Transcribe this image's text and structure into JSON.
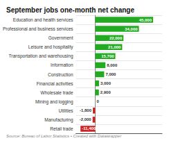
{
  "chart_data": {
    "type": "bar",
    "orientation": "horizontal",
    "title": "September jobs one-month net change",
    "annotations": [
      "Source: Bureau of Labor Statistics • Created with Datawrapper"
    ],
    "categories": [
      "Retail trade",
      "Manufacturing",
      "Utilities",
      "Mining and logging",
      "Wholesale trade",
      "Financial activities",
      "Construction",
      "Information",
      "Transportation and warehousing",
      "Leisure and hospitality",
      "Government",
      "Professional and business services",
      "Education and health services"
    ],
    "values": [
      -11400,
      -2000,
      -1800,
      0,
      2900,
      3000,
      7000,
      8000,
      15700,
      21000,
      22000,
      34000,
      45000
    ],
    "value_labels": [
      "-11,400",
      "-2,000",
      "-1,800",
      "0",
      "2,900",
      "3,000",
      "7,000",
      "8,000",
      "15,700",
      "21,000",
      "22,000",
      "34,000",
      "45,000"
    ],
    "colors": [
      "#cc2222",
      "#cc2222",
      "#cc2222",
      "#22aa22",
      "#22aa22",
      "#22aa22",
      "#22aa22",
      "#22aa22",
      "#22aa22",
      "#22aa22",
      "#22aa22",
      "#22aa22",
      "#22aa22"
    ],
    "xlim": [
      -15000,
      52000
    ],
    "grid": true,
    "data_labels": true,
    "tick_labels": "y"
  }
}
